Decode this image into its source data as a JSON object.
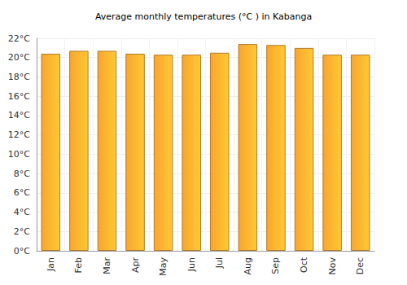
{
  "chart_data": {
    "type": "bar",
    "title": "Average monthly temperatures (°C ) in Kabanga",
    "categories": [
      "Jan",
      "Feb",
      "Mar",
      "Apr",
      "May",
      "Jun",
      "Jul",
      "Aug",
      "Sep",
      "Oct",
      "Nov",
      "Dec"
    ],
    "values": [
      20.4,
      20.7,
      20.7,
      20.4,
      20.3,
      20.3,
      20.5,
      21.4,
      21.3,
      21.0,
      20.3,
      20.3
    ],
    "color": "#f9a52f",
    "ylim": [
      0,
      22
    ],
    "yticks": [
      {
        "value": 0,
        "label": "0°C"
      },
      {
        "value": 2,
        "label": "2°C"
      },
      {
        "value": 4,
        "label": "4°C"
      },
      {
        "value": 6,
        "label": "6°C"
      },
      {
        "value": 8,
        "label": "8°C"
      },
      {
        "value": 10,
        "label": "10°C"
      },
      {
        "value": 12,
        "label": "12°C"
      },
      {
        "value": 14,
        "label": "14°C"
      },
      {
        "value": 16,
        "label": "16°C"
      },
      {
        "value": 18,
        "label": "18°C"
      },
      {
        "value": 20,
        "label": "20°C"
      },
      {
        "value": 22,
        "label": "22°C"
      }
    ],
    "grid": true
  }
}
